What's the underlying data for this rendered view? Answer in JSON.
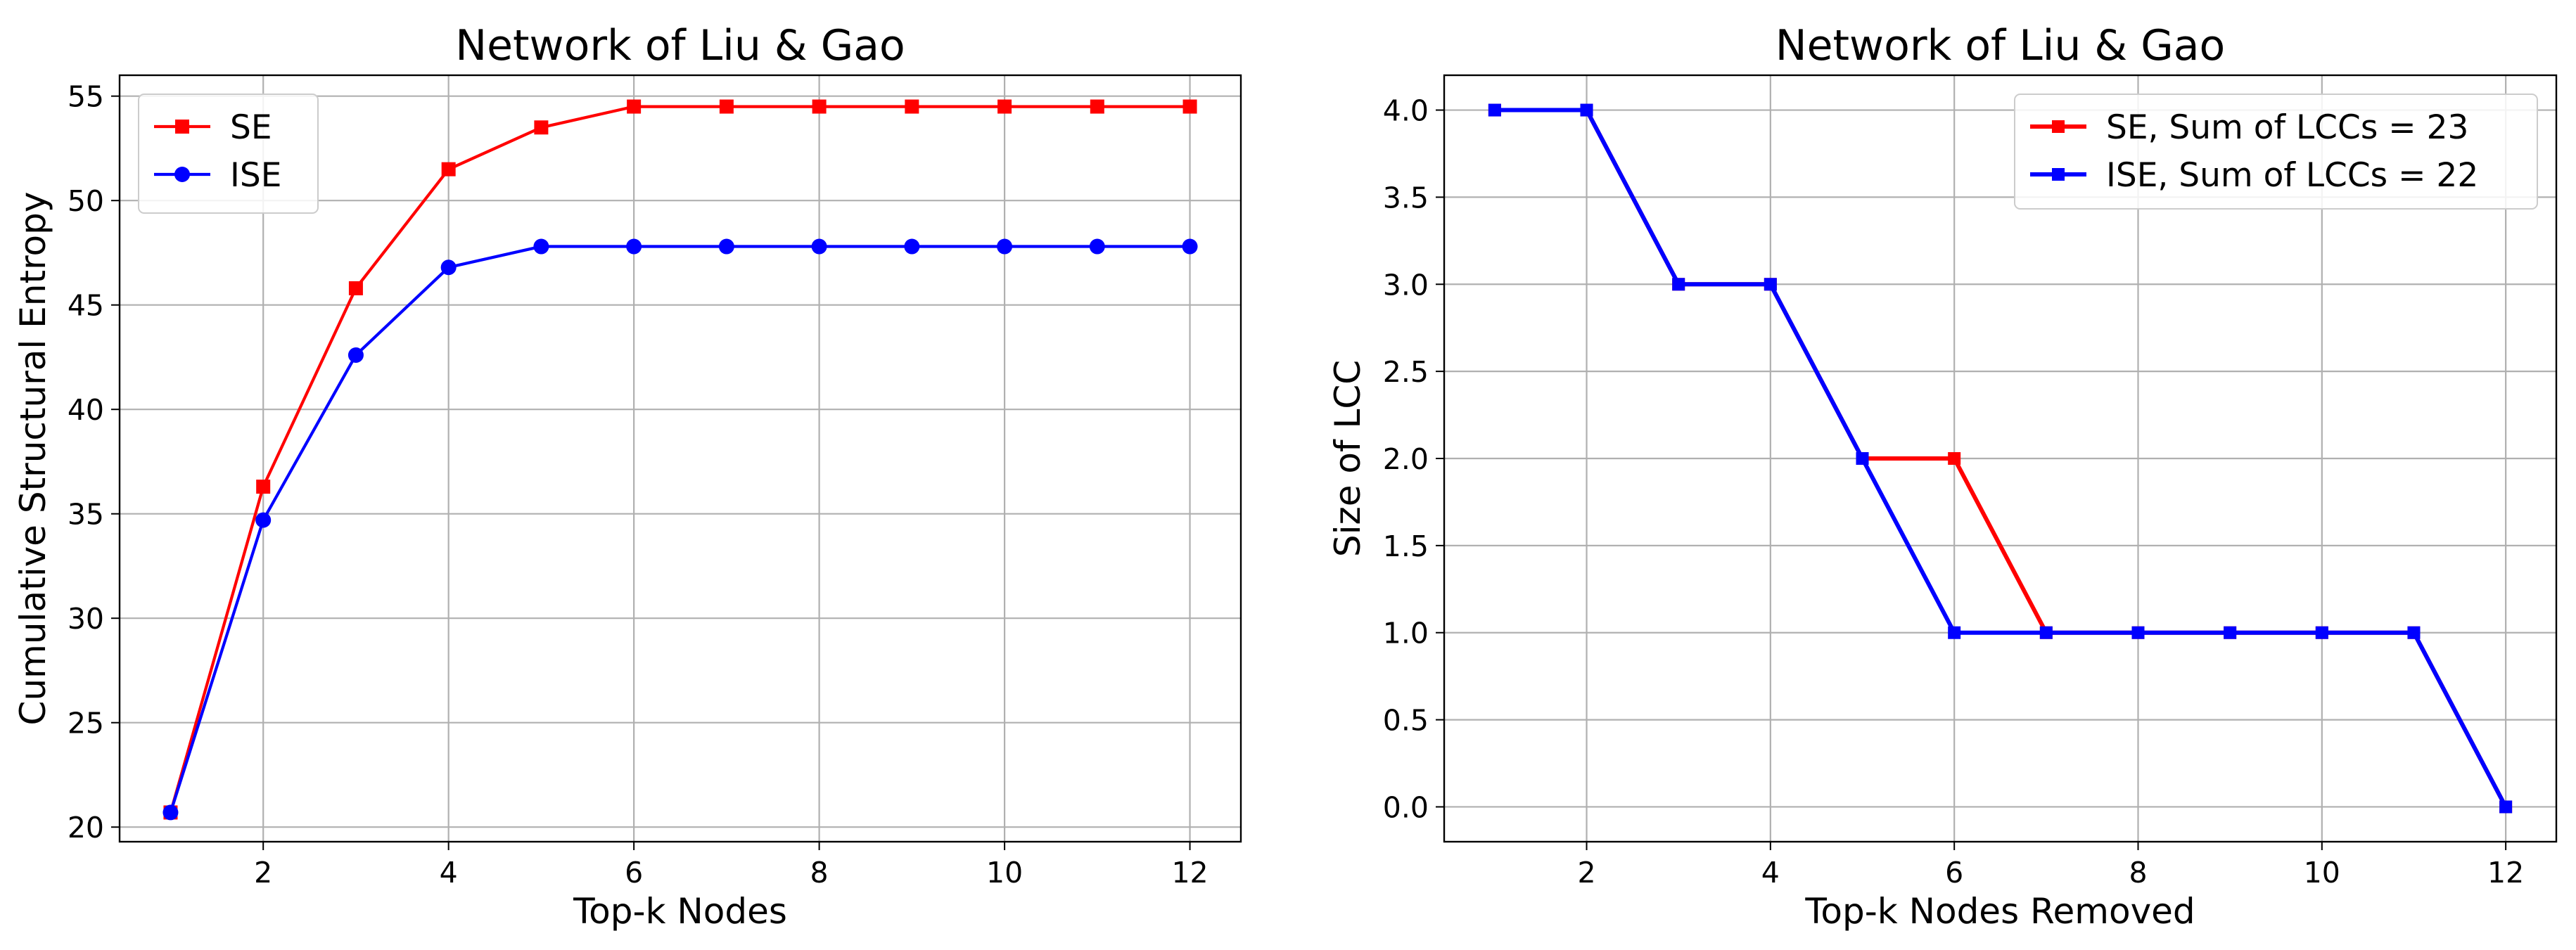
{
  "chart_data": [
    {
      "type": "line",
      "title": "Network of Liu & Gao",
      "xlabel": "Top-k Nodes",
      "ylabel": "Cumulative Structural Entropy",
      "x": [
        1,
        2,
        3,
        4,
        5,
        6,
        7,
        8,
        9,
        10,
        11,
        12
      ],
      "xticks": [
        2,
        4,
        6,
        8,
        10,
        12
      ],
      "yticks": [
        20,
        25,
        30,
        35,
        40,
        45,
        50,
        55
      ],
      "xlim": [
        0.45,
        12.55
      ],
      "ylim": [
        19.3,
        56.0
      ],
      "grid": true,
      "legend_position": "top-left",
      "series": [
        {
          "name": "SE",
          "color": "#ff0000",
          "marker": "square",
          "values": [
            20.7,
            36.3,
            45.8,
            51.5,
            53.5,
            54.5,
            54.5,
            54.5,
            54.5,
            54.5,
            54.5,
            54.5
          ]
        },
        {
          "name": "ISE",
          "color": "#0000ff",
          "marker": "circle",
          "values": [
            20.7,
            34.7,
            42.6,
            46.8,
            47.8,
            47.8,
            47.8,
            47.8,
            47.8,
            47.8,
            47.8,
            47.8
          ]
        }
      ]
    },
    {
      "type": "line",
      "title": "Network of Liu & Gao",
      "xlabel": "Top-k Nodes Removed",
      "ylabel": "Size of LCC",
      "x": [
        1,
        2,
        3,
        4,
        5,
        6,
        7,
        8,
        9,
        10,
        11,
        12
      ],
      "xticks": [
        2,
        4,
        6,
        8,
        10,
        12
      ],
      "yticks": [
        0.0,
        0.5,
        1.0,
        1.5,
        2.0,
        2.5,
        3.0,
        3.5,
        4.0
      ],
      "ytick_labels": [
        "0.0",
        "0.5",
        "1.0",
        "1.5",
        "2.0",
        "2.5",
        "3.0",
        "3.5",
        "4.0"
      ],
      "xlim": [
        0.45,
        12.55
      ],
      "ylim": [
        -0.2,
        4.2
      ],
      "grid": true,
      "legend_position": "top-right",
      "series": [
        {
          "name": "SE,  Sum of LCCs = 23",
          "color": "#ff0000",
          "marker": "square",
          "values": [
            4,
            4,
            3,
            3,
            2,
            2,
            1,
            1,
            1,
            1,
            1,
            0
          ]
        },
        {
          "name": "ISE, Sum of LCCs = 22",
          "color": "#0000ff",
          "marker": "square",
          "values": [
            4,
            4,
            3,
            3,
            2,
            1,
            1,
            1,
            1,
            1,
            1,
            0
          ]
        }
      ]
    }
  ]
}
